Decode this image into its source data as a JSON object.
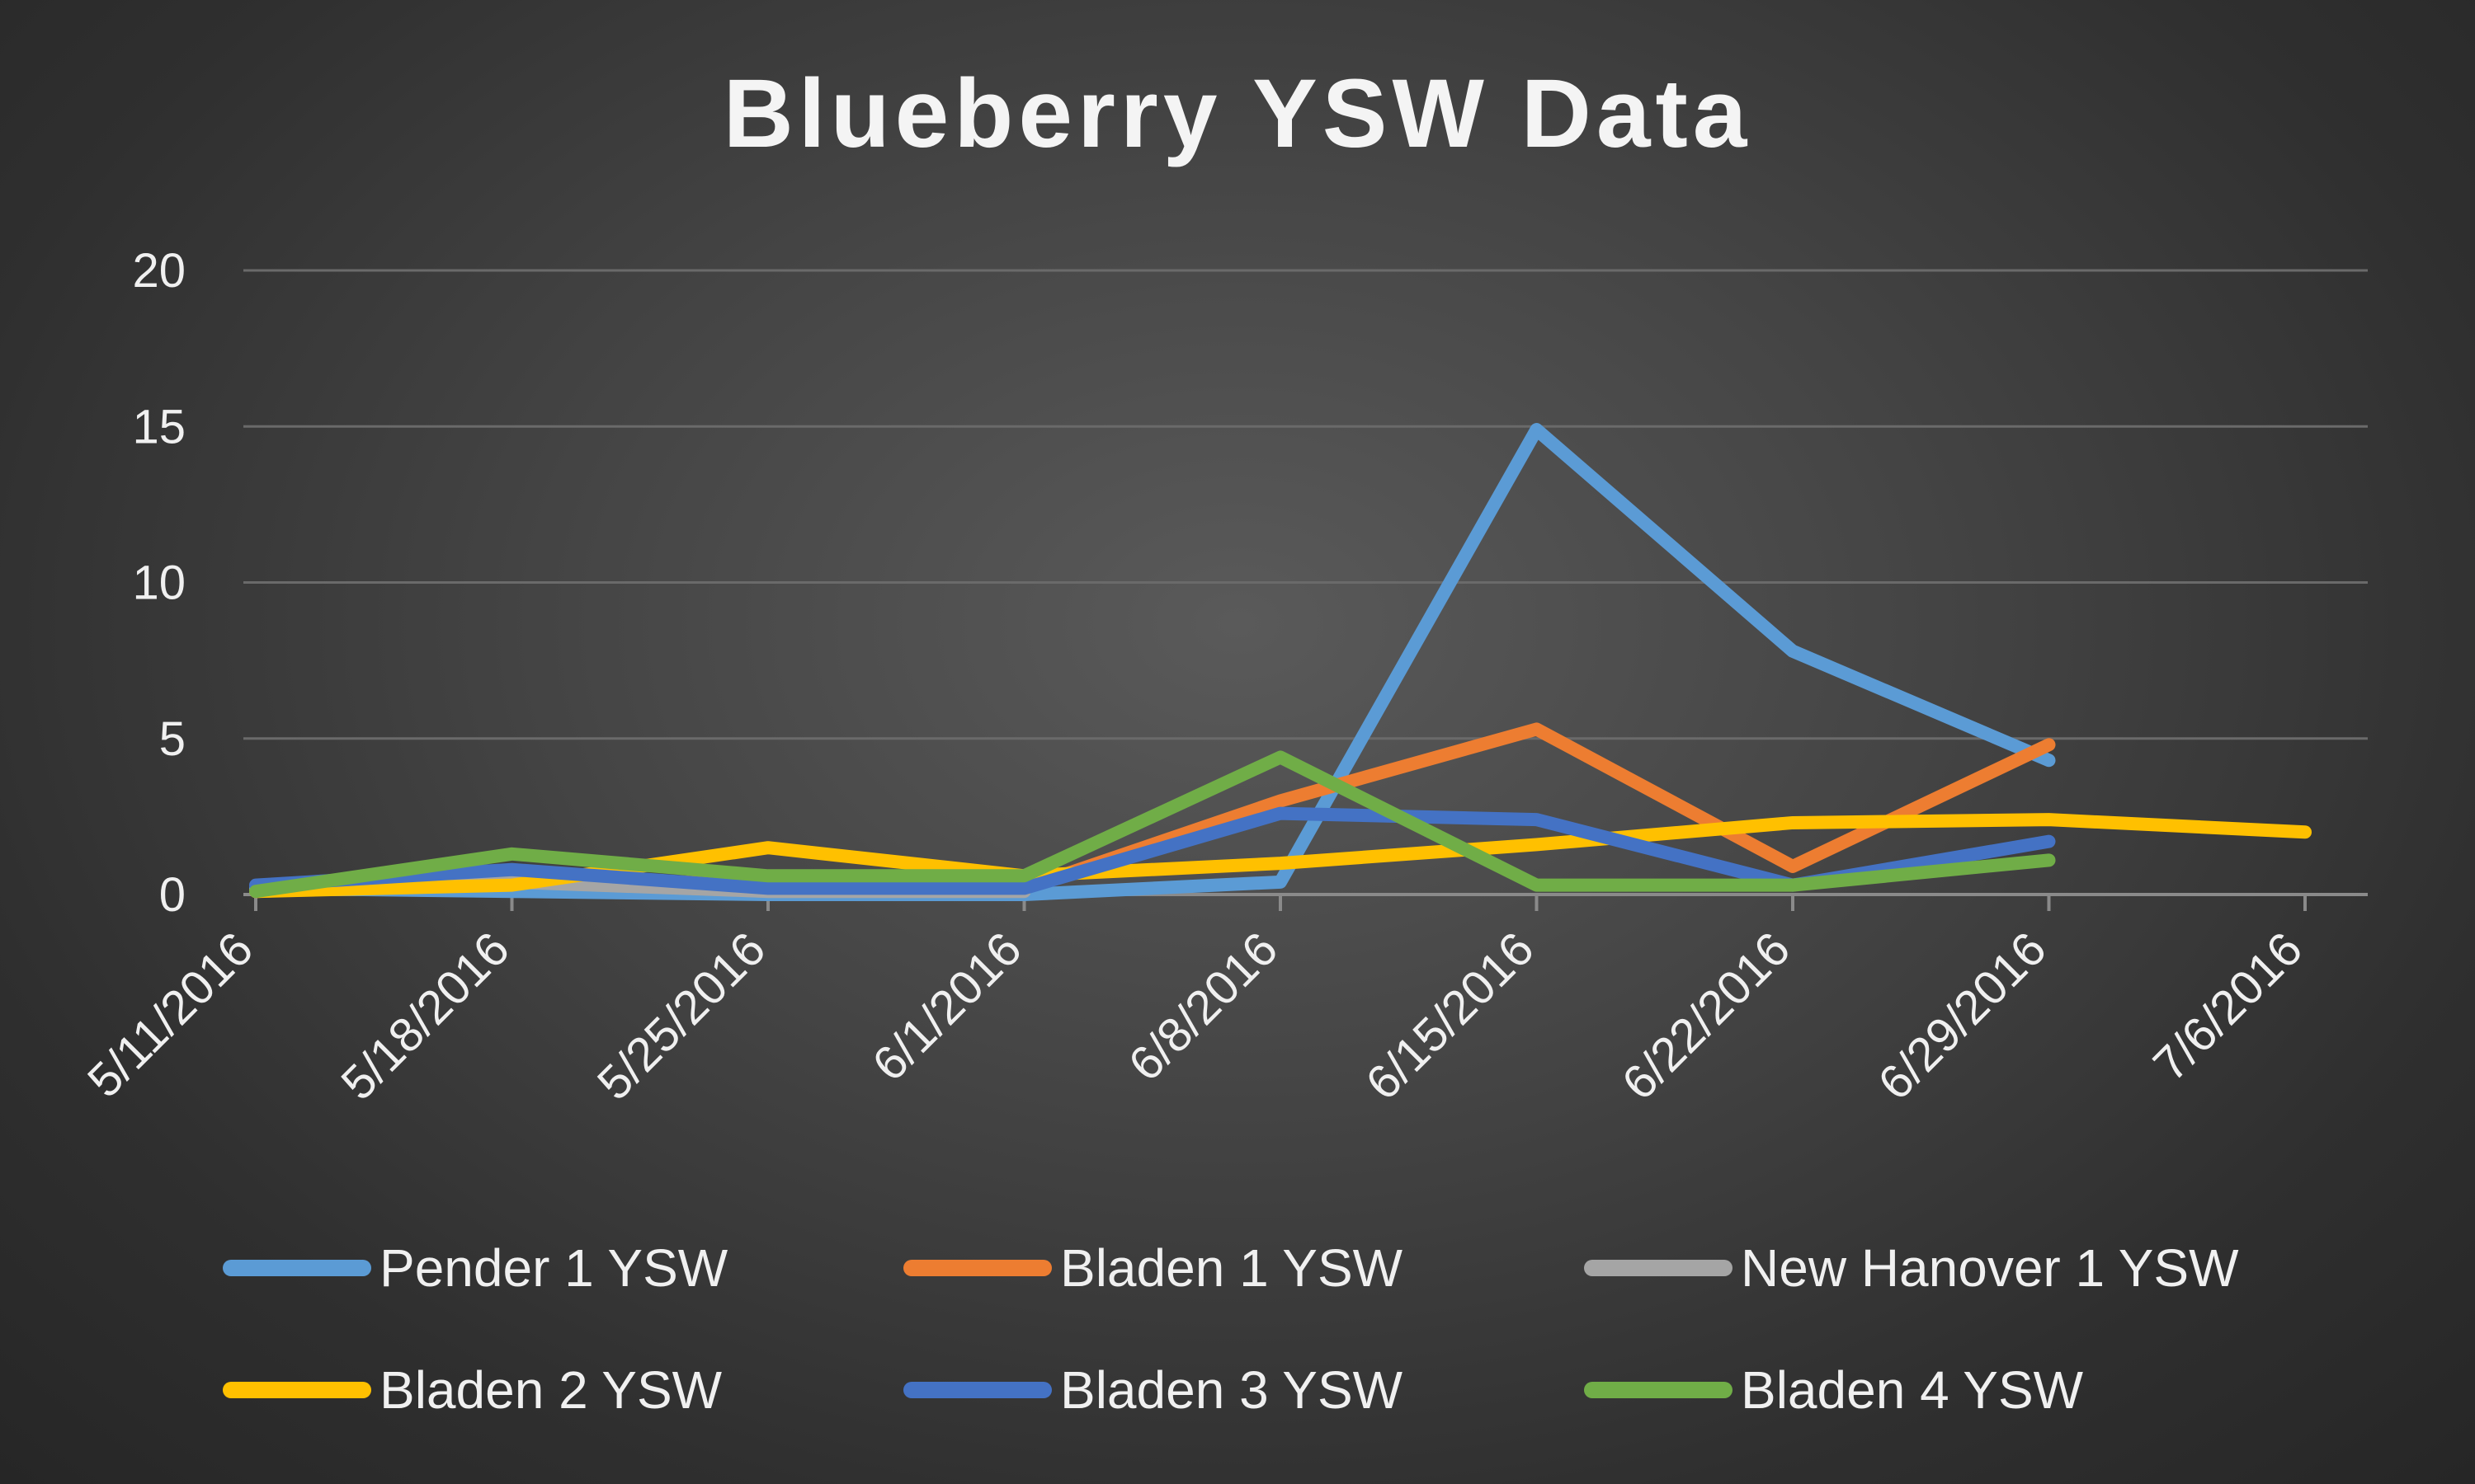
{
  "chart_data": {
    "type": "line",
    "title": "Blueberry YSW Data",
    "xlabel": "",
    "ylabel": "",
    "ylim": [
      0,
      20
    ],
    "yticks": [
      "0",
      "5",
      "10",
      "15",
      "20"
    ],
    "xticks": [
      "5/11/2016",
      "5/18/2016",
      "5/25/2016",
      "6/1/2016",
      "6/8/2016",
      "6/15/2016",
      "6/22/2016",
      "6/29/2016",
      "7/6/2016"
    ],
    "grid": true,
    "legend_position": "bottom",
    "series": [
      {
        "name": "Pender 1 YSW",
        "color": "#5b9bd5",
        "x": [
          "5/11/2016",
          "5/18/2016",
          "5/25/2016",
          "6/1/2016",
          "6/8/2016",
          "6/15/2016",
          "6/22/2016",
          "6/29/2016"
        ],
        "values": [
          0.2,
          0.1,
          0.0,
          0.0,
          0.4,
          14.9,
          7.8,
          4.3
        ]
      },
      {
        "name": "Bladen 1 YSW",
        "color": "#ed7d31",
        "x": [
          "5/11/2016",
          "5/18/2016",
          "5/25/2016",
          "6/1/2016",
          "6/8/2016",
          "6/15/2016",
          "6/22/2016",
          "6/29/2016"
        ],
        "values": [
          0.1,
          0.6,
          0.3,
          0.2,
          3.0,
          5.3,
          0.9,
          4.8
        ]
      },
      {
        "name": "New Hanover 1 YSW",
        "color": "#a5a5a5",
        "x": [
          "5/11/2016",
          "5/18/2016",
          "5/25/2016",
          "6/1/2016"
        ],
        "values": [
          0.1,
          0.4,
          0.1,
          0.1
        ]
      },
      {
        "name": "Bladen 2 YSW",
        "color": "#ffc000",
        "x": [
          "5/11/2016",
          "5/18/2016",
          "5/25/2016",
          "6/1/2016",
          "6/8/2016",
          "6/15/2016",
          "6/22/2016",
          "6/29/2016",
          "7/6/2016"
        ],
        "values": [
          0.1,
          0.3,
          1.5,
          0.6,
          1.0,
          1.6,
          2.3,
          2.4,
          2.0
        ]
      },
      {
        "name": "Bladen 3 YSW",
        "color": "#4472c4",
        "x": [
          "5/11/2016",
          "5/18/2016",
          "5/25/2016",
          "6/1/2016",
          "6/8/2016",
          "6/15/2016",
          "6/22/2016",
          "6/29/2016"
        ],
        "values": [
          0.3,
          0.8,
          0.2,
          0.2,
          2.6,
          2.4,
          0.3,
          1.7
        ]
      },
      {
        "name": "Bladen 4 YSW",
        "color": "#70ad47",
        "x": [
          "5/11/2016",
          "5/18/2016",
          "5/25/2016",
          "6/1/2016",
          "6/8/2016",
          "6/15/2016",
          "6/22/2016",
          "6/29/2016"
        ],
        "values": [
          0.1,
          1.3,
          0.6,
          0.6,
          4.4,
          0.3,
          0.3,
          1.1
        ]
      }
    ]
  }
}
